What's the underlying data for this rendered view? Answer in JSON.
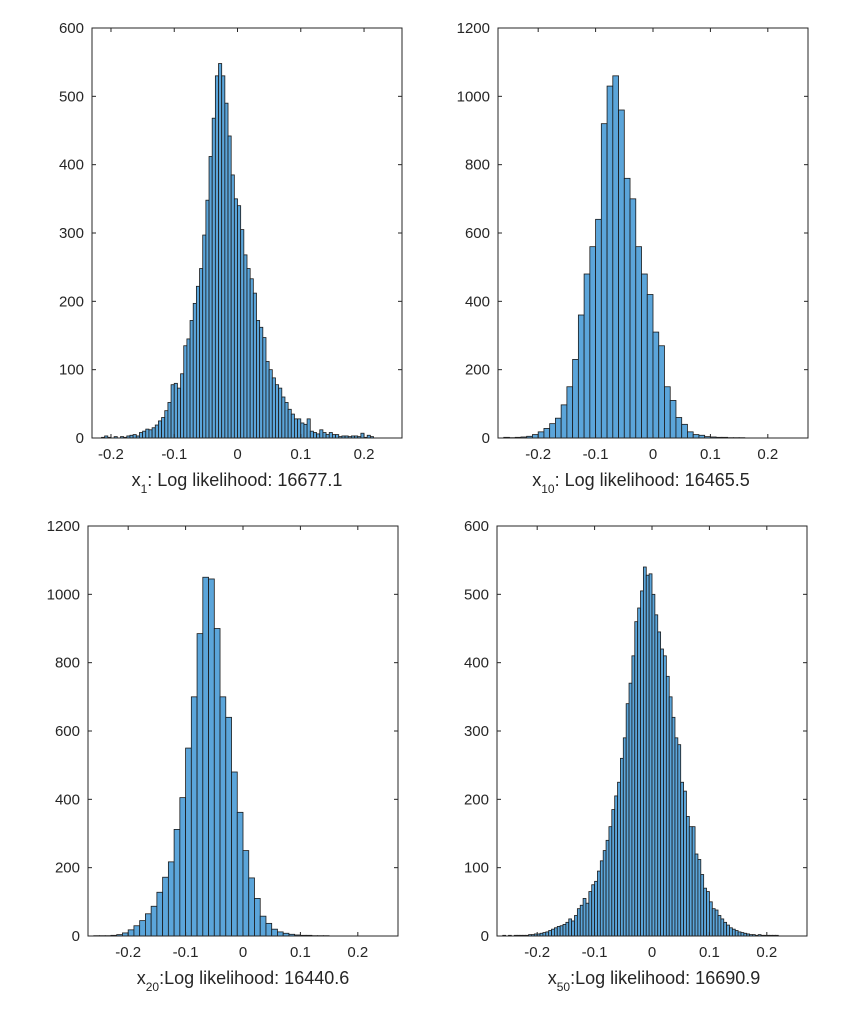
{
  "colors": {
    "bar_fill": "#5ba5da",
    "bar_edge": "#1a1a1a",
    "axis": "#262626"
  },
  "chart_data": [
    {
      "type": "bar",
      "xlabel": {
        "var": "x",
        "sub": "1",
        "rest": ": Log likelihood:  16677.1"
      },
      "xlim": [
        -0.23,
        0.26
      ],
      "ylim": [
        0,
        600
      ],
      "xticks": [
        "-0.2",
        "-0.1",
        "0",
        "0.1",
        "0.2"
      ],
      "xtick_values": [
        -0.2,
        -0.1,
        0,
        0.1,
        0.2
      ],
      "yticks": [
        "0",
        "100",
        "200",
        "300",
        "400",
        "500",
        "600"
      ],
      "ytick_values": [
        0,
        100,
        200,
        300,
        400,
        500,
        600
      ],
      "bin_start": -0.215,
      "bin_width": 0.005,
      "values": [
        1,
        3,
        1,
        0,
        2,
        0,
        2,
        1,
        3,
        4,
        5,
        3,
        8,
        10,
        13,
        12,
        15,
        19,
        25,
        30,
        40,
        52,
        78,
        80,
        73,
        94,
        135,
        145,
        172,
        197,
        222,
        248,
        297,
        348,
        412,
        468,
        530,
        548,
        530,
        490,
        442,
        385,
        350,
        340,
        305,
        268,
        248,
        233,
        212,
        172,
        162,
        147,
        112,
        100,
        88,
        78,
        73,
        60,
        52,
        42,
        35,
        28,
        28,
        22,
        20,
        28,
        10,
        8,
        6,
        12,
        8,
        5,
        8,
        5,
        5,
        2,
        3,
        3,
        2,
        3,
        3,
        2,
        7,
        1,
        4,
        2
      ]
    },
    {
      "type": "bar",
      "xlabel": {
        "var": "x",
        "sub": "10",
        "rest": ": Log likelihood:  16465.5"
      },
      "xlim": [
        -0.27,
        0.27
      ],
      "ylim": [
        0,
        1200
      ],
      "xticks": [
        "-0.2",
        "-0.1",
        "0",
        "0.1",
        "0.2"
      ],
      "xtick_values": [
        -0.2,
        -0.1,
        0,
        0.1,
        0.2
      ],
      "yticks": [
        "0",
        "200",
        "400",
        "600",
        "800",
        "1000",
        "1200"
      ],
      "ytick_values": [
        0,
        200,
        400,
        600,
        800,
        1000,
        1200
      ],
      "bin_start": -0.26,
      "bin_width": 0.01,
      "values": [
        2,
        1,
        2,
        3,
        5,
        10,
        18,
        28,
        42,
        58,
        97,
        150,
        230,
        360,
        480,
        560,
        640,
        920,
        1030,
        1060,
        960,
        760,
        700,
        560,
        480,
        420,
        310,
        270,
        150,
        110,
        60,
        40,
        18,
        10,
        8,
        4,
        3,
        2,
        2,
        1,
        1,
        1
      ]
    },
    {
      "type": "bar",
      "xlabel": {
        "var": "x",
        "sub": "20",
        "rest": ":Log likelihood:  16440.6"
      },
      "xlim": [
        -0.27,
        0.27
      ],
      "ylim": [
        0,
        1200
      ],
      "xticks": [
        "-0.2",
        "-0.1",
        "0",
        "0.1",
        "0.2"
      ],
      "xtick_values": [
        -0.2,
        -0.1,
        0,
        0.1,
        0.2
      ],
      "yticks": [
        "0",
        "200",
        "400",
        "600",
        "800",
        "1000",
        "1200"
      ],
      "ytick_values": [
        0,
        200,
        400,
        600,
        800,
        1000,
        1200
      ],
      "bin_start": -0.26,
      "bin_width": 0.01,
      "values": [
        1,
        1,
        1,
        2,
        4,
        9,
        18,
        30,
        45,
        65,
        87,
        128,
        172,
        217,
        312,
        405,
        550,
        700,
        885,
        1050,
        1045,
        900,
        700,
        640,
        480,
        362,
        250,
        170,
        110,
        58,
        37,
        20,
        12,
        8,
        5,
        3,
        2,
        2,
        1,
        1,
        1
      ]
    },
    {
      "type": "bar",
      "xlabel": {
        "var": "x",
        "sub": "50",
        "rest": ":Log likelihood:  16690.9"
      },
      "xlim": [
        -0.27,
        0.27
      ],
      "ylim": [
        0,
        600
      ],
      "xticks": [
        "-0.2",
        "-0.1",
        "0",
        "0.1",
        "0.2"
      ],
      "xtick_values": [
        -0.2,
        -0.1,
        0,
        0.1,
        0.2
      ],
      "yticks": [
        "0",
        "100",
        "200",
        "300",
        "400",
        "500",
        "600"
      ],
      "ytick_values": [
        0,
        100,
        200,
        300,
        400,
        500,
        600
      ],
      "bin_start": -0.26,
      "bin_width": 0.005,
      "values": [
        1,
        0,
        1,
        0,
        1,
        1,
        1,
        1,
        1,
        2,
        2,
        3,
        3,
        4,
        5,
        6,
        8,
        10,
        12,
        14,
        15,
        17,
        20,
        25,
        22,
        30,
        40,
        45,
        55,
        48,
        65,
        75,
        80,
        95,
        110,
        125,
        140,
        160,
        185,
        205,
        225,
        260,
        290,
        340,
        370,
        410,
        460,
        480,
        505,
        540,
        528,
        530,
        500,
        470,
        445,
        420,
        410,
        380,
        350,
        320,
        290,
        280,
        225,
        212,
        175,
        160,
        160,
        120,
        112,
        90,
        70,
        65,
        50,
        40,
        38,
        30,
        25,
        20,
        16,
        12,
        10,
        8,
        6,
        5,
        4,
        3,
        2,
        2,
        1,
        2,
        1,
        1,
        1,
        1,
        1,
        1
      ]
    }
  ]
}
